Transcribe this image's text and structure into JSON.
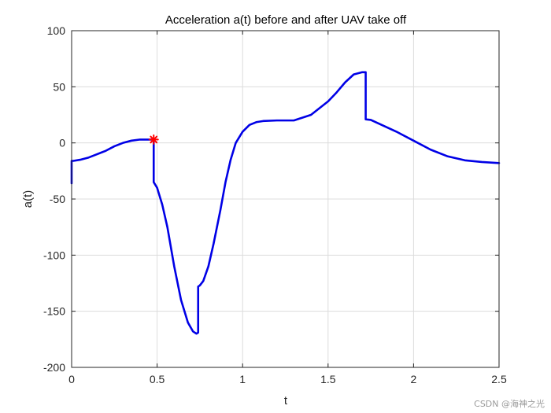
{
  "chart_data": {
    "type": "line",
    "title": "Acceleration a(t) before and after UAV take off",
    "xlabel": "t",
    "ylabel": "a(t)",
    "xlim": [
      0,
      2.5
    ],
    "ylim": [
      -200,
      100
    ],
    "xticks": [
      0,
      0.5,
      1,
      1.5,
      2,
      2.5
    ],
    "xtick_labels": [
      "0",
      "0.5",
      "1",
      "1.5",
      "2",
      "2.5"
    ],
    "yticks": [
      -200,
      -150,
      -100,
      -50,
      0,
      50,
      100
    ],
    "ytick_labels": [
      "-200",
      "-150",
      "-100",
      "-50",
      "0",
      "50",
      "100"
    ],
    "grid": true,
    "colors": {
      "line": "#0000e6",
      "marker": "#ff0000",
      "grid": "#dcdcdc",
      "axis": "#262626"
    },
    "series": [
      {
        "line_color": "#0000e6",
        "x": [
          0,
          0,
          0.01,
          0.05,
          0.1,
          0.15,
          0.2,
          0.25,
          0.3,
          0.35,
          0.4,
          0.45,
          0.48,
          0.48,
          0.5,
          0.53,
          0.56,
          0.6,
          0.64,
          0.68,
          0.71,
          0.73,
          0.74,
          0.74,
          0.75,
          0.77,
          0.8,
          0.83,
          0.87,
          0.9,
          0.93,
          0.96,
          1.0,
          1.04,
          1.08,
          1.12,
          1.2,
          1.3,
          1.4,
          1.5,
          1.55,
          1.6,
          1.65,
          1.7,
          1.72,
          1.72,
          1.75,
          1.8,
          1.9,
          2.0,
          2.1,
          2.2,
          2.3,
          2.4,
          2.5
        ],
        "y": [
          -36,
          -16,
          -16,
          -15,
          -13,
          -10,
          -7,
          -3,
          0,
          2,
          3,
          3,
          3,
          -35,
          -40,
          -55,
          -75,
          -110,
          -140,
          -160,
          -168,
          -170,
          -169,
          -128,
          -127,
          -123,
          -110,
          -90,
          -60,
          -35,
          -15,
          0,
          10,
          16,
          18.5,
          19.5,
          20,
          20,
          25,
          37,
          45,
          54,
          61,
          63,
          63,
          21,
          20.5,
          17,
          10,
          2,
          -6,
          -12,
          -15.5,
          -17,
          -18
        ]
      }
    ],
    "markers": [
      {
        "x": 0.48,
        "y": 3,
        "symbol": "*",
        "color": "#ff0000"
      }
    ]
  },
  "watermark": "CSDN @海神之光"
}
